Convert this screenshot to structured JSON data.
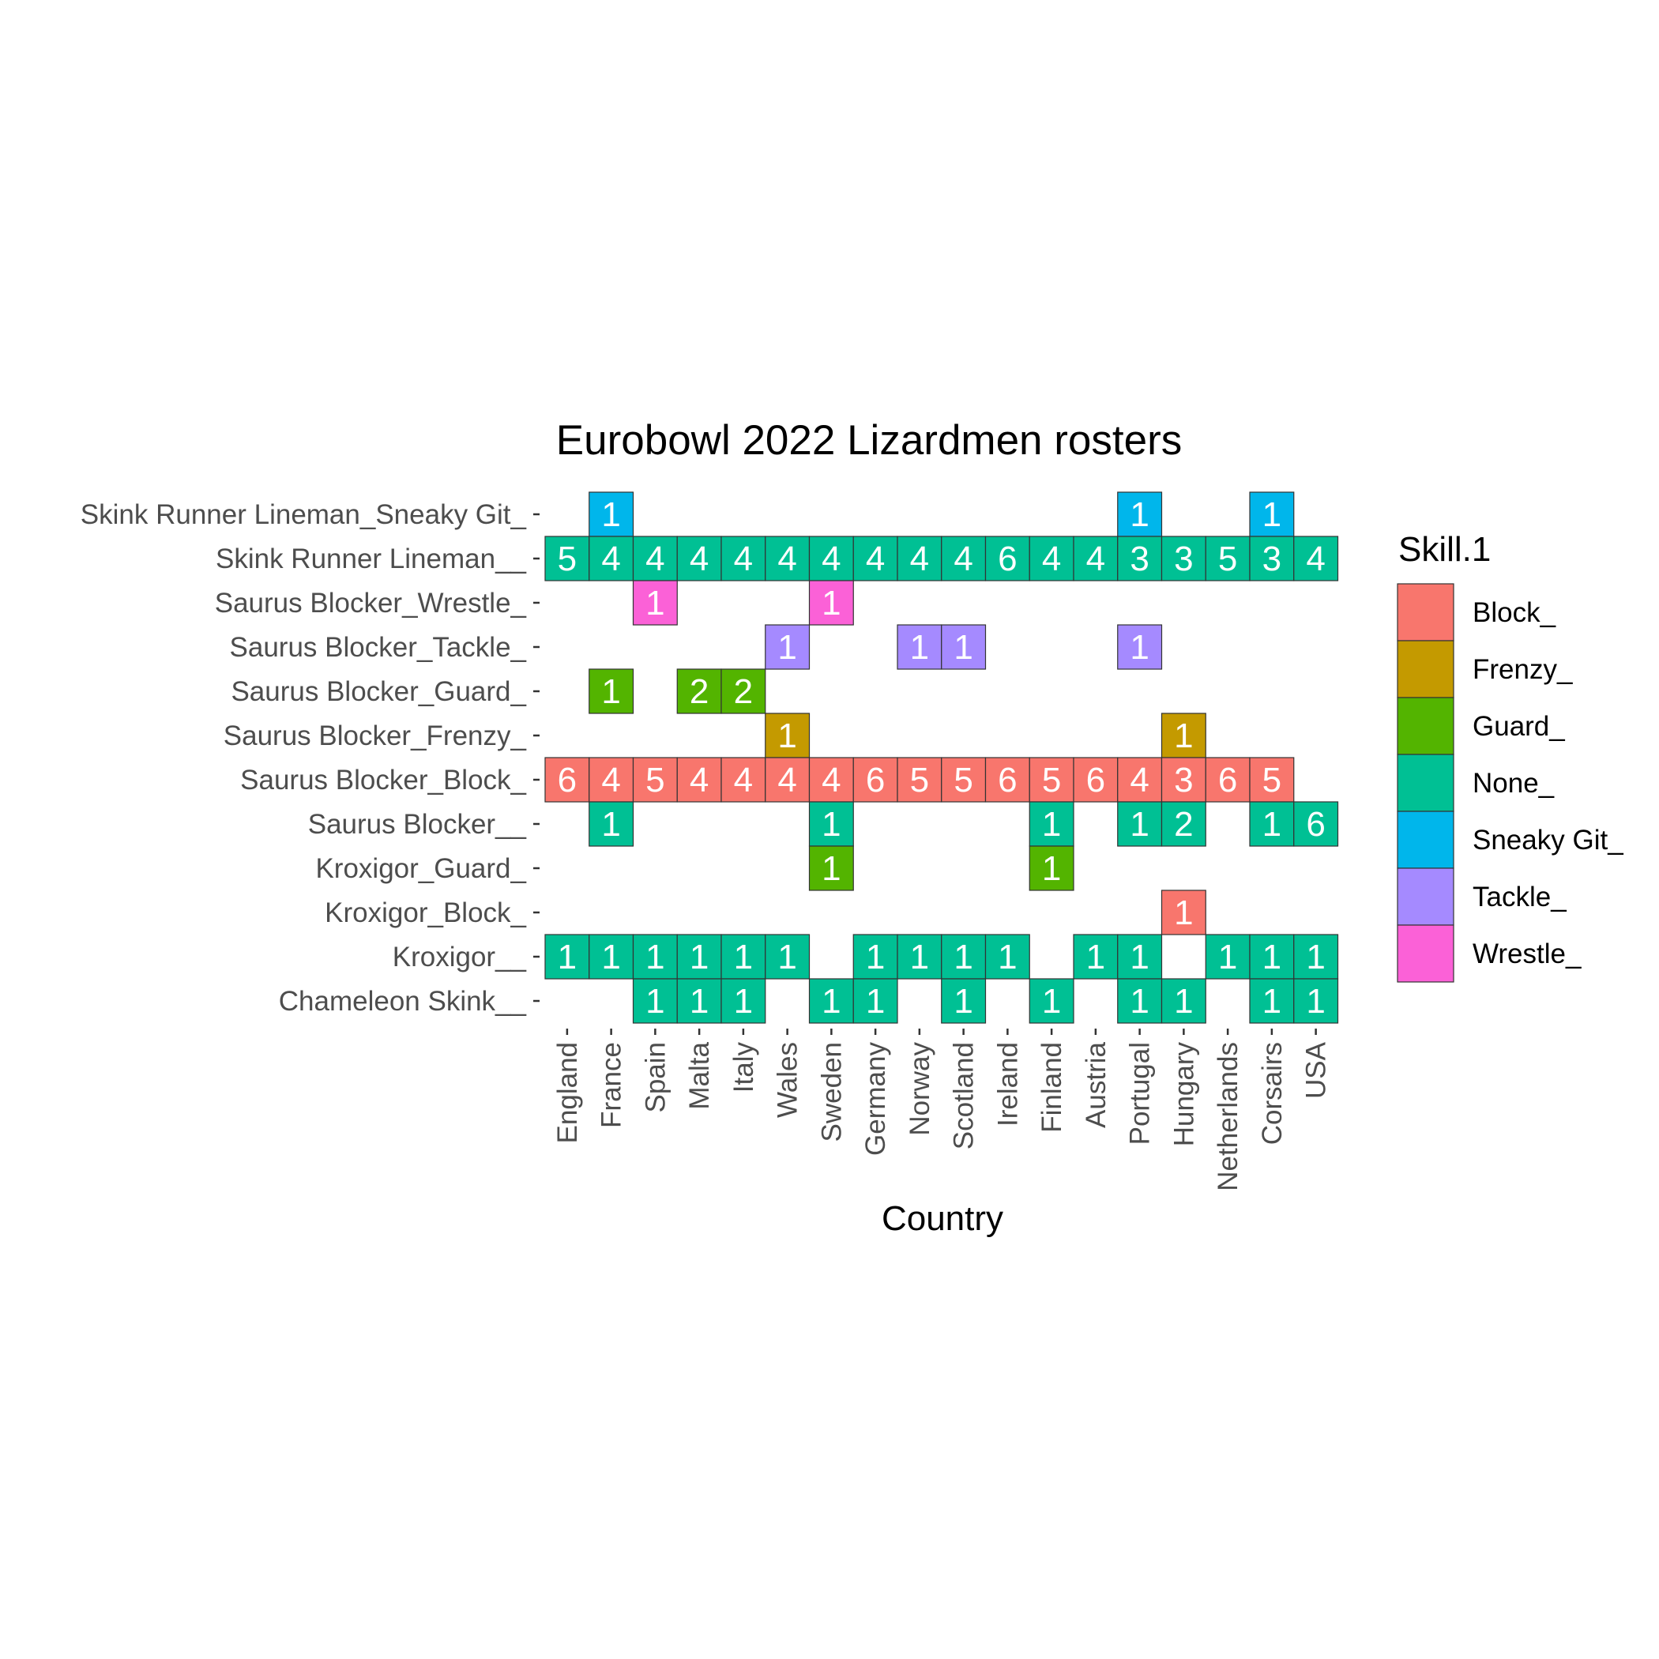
{
  "chart_data": {
    "type": "heatmap",
    "title": "Eurobowl 2022 Lizardmen rosters",
    "xlabel": "Country",
    "ylabel": "",
    "legend_title": "Skill.1",
    "legend_position": "right",
    "grid": false,
    "x": [
      "England",
      "France",
      "Spain",
      "Malta",
      "Italy",
      "Wales",
      "Sweden",
      "Germany",
      "Norway",
      "Scotland",
      "Ireland",
      "Finland",
      "Austria",
      "Portugal",
      "Hungary",
      "Netherlands",
      "Corsairs",
      "USA"
    ],
    "y": [
      "Skink Runner Lineman_Sneaky Git_",
      "Skink Runner Lineman__",
      "Saurus Blocker_Wrestle_",
      "Saurus Blocker_Tackle_",
      "Saurus Blocker_Guard_",
      "Saurus Blocker_Frenzy_",
      "Saurus Blocker_Block_",
      "Saurus Blocker__",
      "Kroxigor_Guard_",
      "Kroxigor_Block_",
      "Kroxigor__",
      "Chameleon Skink__"
    ],
    "skills": [
      {
        "name": "Block_",
        "color": "#F8766D"
      },
      {
        "name": "Frenzy_",
        "color": "#C49A00"
      },
      {
        "name": "Guard_",
        "color": "#53B400"
      },
      {
        "name": "None_",
        "color": "#00C094"
      },
      {
        "name": "Sneaky Git_",
        "color": "#00B6EB"
      },
      {
        "name": "Tackle_",
        "color": "#A58AFF"
      },
      {
        "name": "Wrestle_",
        "color": "#FB61D7"
      }
    ],
    "rows": [
      {
        "skill": "Sneaky Git_",
        "values": [
          null,
          1,
          null,
          null,
          null,
          null,
          null,
          null,
          null,
          null,
          null,
          null,
          null,
          1,
          null,
          null,
          1,
          null
        ]
      },
      {
        "skill": "None_",
        "values": [
          5,
          4,
          4,
          4,
          4,
          4,
          4,
          4,
          4,
          4,
          6,
          4,
          4,
          3,
          3,
          5,
          3,
          4
        ]
      },
      {
        "skill": "Wrestle_",
        "values": [
          null,
          null,
          1,
          null,
          null,
          null,
          1,
          null,
          null,
          null,
          null,
          null,
          null,
          null,
          null,
          null,
          null,
          null
        ]
      },
      {
        "skill": "Tackle_",
        "values": [
          null,
          null,
          null,
          null,
          null,
          1,
          null,
          null,
          1,
          1,
          null,
          null,
          null,
          1,
          null,
          null,
          null,
          null
        ]
      },
      {
        "skill": "Guard_",
        "values": [
          null,
          1,
          null,
          2,
          2,
          null,
          null,
          null,
          null,
          null,
          null,
          null,
          null,
          null,
          null,
          null,
          null,
          null
        ]
      },
      {
        "skill": "Frenzy_",
        "values": [
          null,
          null,
          null,
          null,
          null,
          1,
          null,
          null,
          null,
          null,
          null,
          null,
          null,
          null,
          1,
          null,
          null,
          null
        ]
      },
      {
        "skill": "Block_",
        "values": [
          6,
          4,
          5,
          4,
          4,
          4,
          4,
          6,
          5,
          5,
          6,
          5,
          6,
          4,
          3,
          6,
          5,
          null
        ]
      },
      {
        "skill": "None_",
        "values": [
          null,
          1,
          null,
          null,
          null,
          null,
          1,
          null,
          null,
          null,
          null,
          1,
          null,
          1,
          2,
          null,
          1,
          6
        ]
      },
      {
        "skill": "Guard_",
        "values": [
          null,
          null,
          null,
          null,
          null,
          null,
          1,
          null,
          null,
          null,
          null,
          1,
          null,
          null,
          null,
          null,
          null,
          null
        ]
      },
      {
        "skill": "Block_",
        "values": [
          null,
          null,
          null,
          null,
          null,
          null,
          null,
          null,
          null,
          null,
          null,
          null,
          null,
          null,
          1,
          null,
          null,
          null
        ]
      },
      {
        "skill": "None_",
        "values": [
          1,
          1,
          1,
          1,
          1,
          1,
          null,
          1,
          1,
          1,
          1,
          null,
          1,
          1,
          null,
          1,
          1,
          1
        ]
      },
      {
        "skill": "None_",
        "values": [
          null,
          null,
          1,
          1,
          1,
          null,
          1,
          1,
          null,
          1,
          null,
          1,
          null,
          1,
          1,
          null,
          1,
          1
        ]
      }
    ]
  }
}
